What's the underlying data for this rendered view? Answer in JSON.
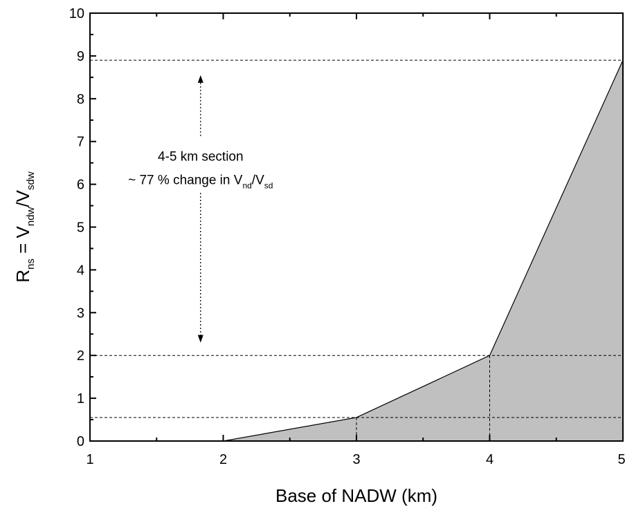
{
  "chart_data": {
    "type": "area",
    "title": "",
    "xlabel": "Base of NADW (km)",
    "ylabel": {
      "prefix": "R",
      "prefix_sub": "ns",
      "mid": " = V",
      "mid_sub": "ndw",
      "sep": "/V",
      "sep_sub": "sdw"
    },
    "xlim": [
      1,
      5
    ],
    "ylim": [
      0,
      10
    ],
    "x_ticks": [
      "1",
      "2",
      "3",
      "4",
      "5"
    ],
    "y_ticks": [
      "0",
      "1",
      "2",
      "3",
      "4",
      "5",
      "6",
      "7",
      "8",
      "9",
      "10"
    ],
    "series": [
      {
        "x": [
          2,
          3,
          4,
          5
        ],
        "y": [
          0,
          0.55,
          2.0,
          8.9
        ],
        "fill": "#c0c0c0",
        "line": "#000000"
      }
    ],
    "reference_lines": {
      "horizontal": [
        0.55,
        2.0,
        8.9
      ],
      "vertical": [
        [
          3,
          0.55
        ],
        [
          4,
          2.0
        ]
      ]
    },
    "arrow": {
      "x": 1.83,
      "y_from": 2.3,
      "y_to": 8.55
    },
    "annotation": {
      "line1": "4-5 km section",
      "line2_text": "~ 77 % change in V",
      "line2_sub1": "nd",
      "line2_sep": "/V",
      "line2_sub2": "sd"
    },
    "grid": false,
    "legend": "none"
  }
}
